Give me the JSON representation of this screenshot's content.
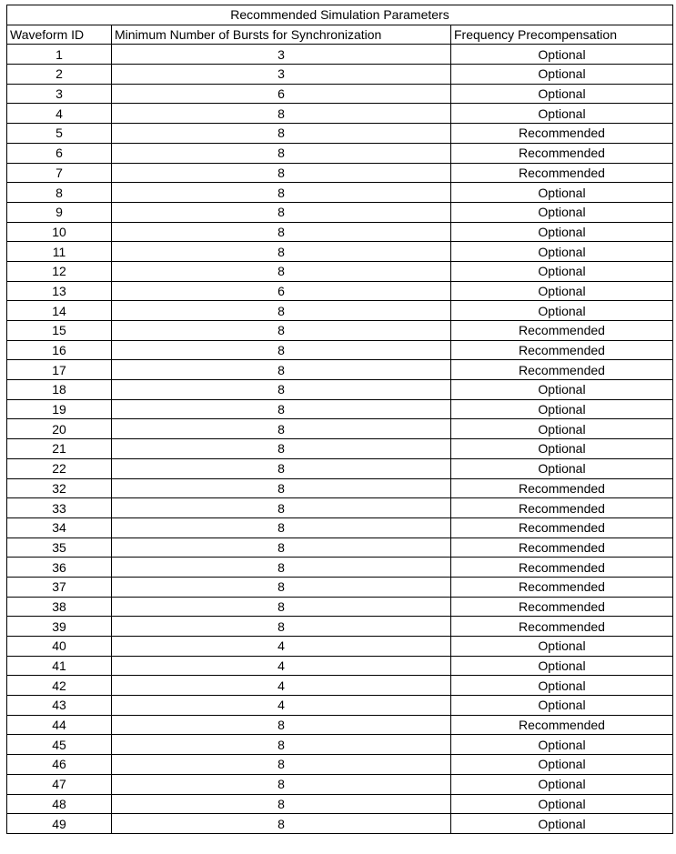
{
  "table": {
    "title": "Recommended Simulation Parameters",
    "columns": [
      "Waveform ID",
      "Minimum Number of Bursts for Synchronization",
      "Frequency Precompensation"
    ],
    "rows": [
      [
        "1",
        "3",
        "Optional"
      ],
      [
        "2",
        "3",
        "Optional"
      ],
      [
        "3",
        "6",
        "Optional"
      ],
      [
        "4",
        "8",
        "Optional"
      ],
      [
        "5",
        "8",
        "Recommended"
      ],
      [
        "6",
        "8",
        "Recommended"
      ],
      [
        "7",
        "8",
        "Recommended"
      ],
      [
        "8",
        "8",
        "Optional"
      ],
      [
        "9",
        "8",
        "Optional"
      ],
      [
        "10",
        "8",
        "Optional"
      ],
      [
        "11",
        "8",
        "Optional"
      ],
      [
        "12",
        "8",
        "Optional"
      ],
      [
        "13",
        "6",
        "Optional"
      ],
      [
        "14",
        "8",
        "Optional"
      ],
      [
        "15",
        "8",
        "Recommended"
      ],
      [
        "16",
        "8",
        "Recommended"
      ],
      [
        "17",
        "8",
        "Recommended"
      ],
      [
        "18",
        "8",
        "Optional"
      ],
      [
        "19",
        "8",
        "Optional"
      ],
      [
        "20",
        "8",
        "Optional"
      ],
      [
        "21",
        "8",
        "Optional"
      ],
      [
        "22",
        "8",
        "Optional"
      ],
      [
        "32",
        "8",
        "Recommended"
      ],
      [
        "33",
        "8",
        "Recommended"
      ],
      [
        "34",
        "8",
        "Recommended"
      ],
      [
        "35",
        "8",
        "Recommended"
      ],
      [
        "36",
        "8",
        "Recommended"
      ],
      [
        "37",
        "8",
        "Recommended"
      ],
      [
        "38",
        "8",
        "Recommended"
      ],
      [
        "39",
        "8",
        "Recommended"
      ],
      [
        "40",
        "4",
        "Optional"
      ],
      [
        "41",
        "4",
        "Optional"
      ],
      [
        "42",
        "4",
        "Optional"
      ],
      [
        "43",
        "4",
        "Optional"
      ],
      [
        "44",
        "8",
        "Recommended"
      ],
      [
        "45",
        "8",
        "Optional"
      ],
      [
        "46",
        "8",
        "Optional"
      ],
      [
        "47",
        "8",
        "Optional"
      ],
      [
        "48",
        "8",
        "Optional"
      ],
      [
        "49",
        "8",
        "Optional"
      ]
    ]
  }
}
